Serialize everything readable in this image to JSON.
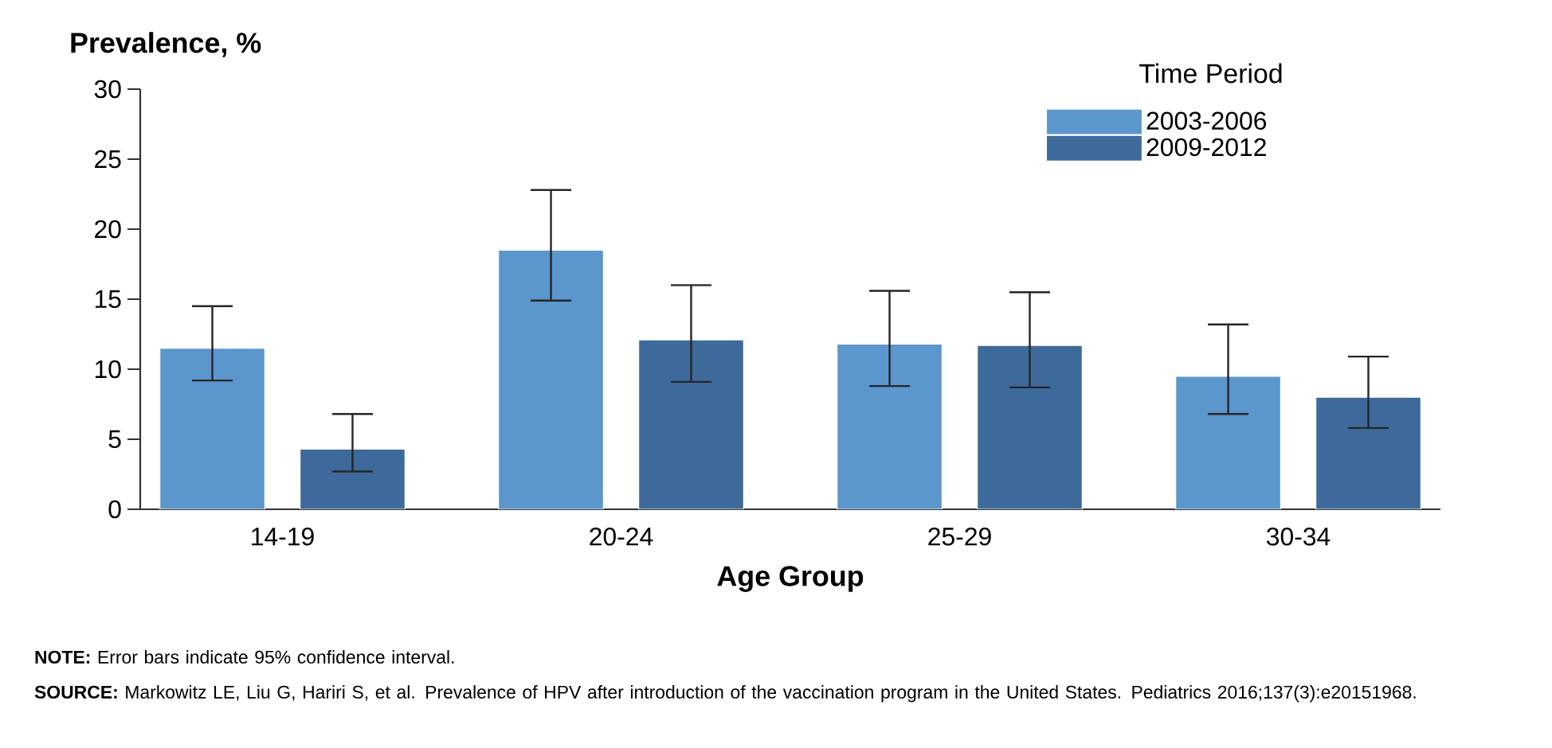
{
  "chart_data": {
    "type": "bar",
    "xlabel": "Age Group",
    "ylabel": "Prevalence, %",
    "legend_title": "Time Period",
    "categories": [
      "14-19",
      "20-24",
      "25-29",
      "30-34"
    ],
    "series": [
      {
        "name": "2003-2006",
        "color": "#5b96cc",
        "values": [
          11.5,
          18.5,
          11.8,
          9.5
        ],
        "errors": [
          [
            9.2,
            14.5
          ],
          [
            14.9,
            22.8
          ],
          [
            8.8,
            15.6
          ],
          [
            6.8,
            13.2
          ]
        ]
      },
      {
        "name": "2009-2012",
        "color": "#3d6a9a",
        "values": [
          4.3,
          12.1,
          11.7,
          8.0
        ],
        "errors": [
          [
            2.7,
            6.8
          ],
          [
            9.1,
            16.0
          ],
          [
            8.7,
            15.5
          ],
          [
            5.8,
            10.9
          ]
        ]
      }
    ],
    "ylim": [
      0,
      30
    ],
    "yticks": [
      0,
      5,
      10,
      15,
      20,
      25,
      30
    ],
    "grid": false,
    "legend": "top right",
    "annotations": [
      "**NOTE:** Error bars indicate 95% confidence interval.",
      "**SOURCE:** Markowitz LE, Liu G, Hariri S, et al. Prevalence of HPV after introduction of the vaccination program in the United States. Pediatrics 2016;137(3):e20151968."
    ]
  }
}
